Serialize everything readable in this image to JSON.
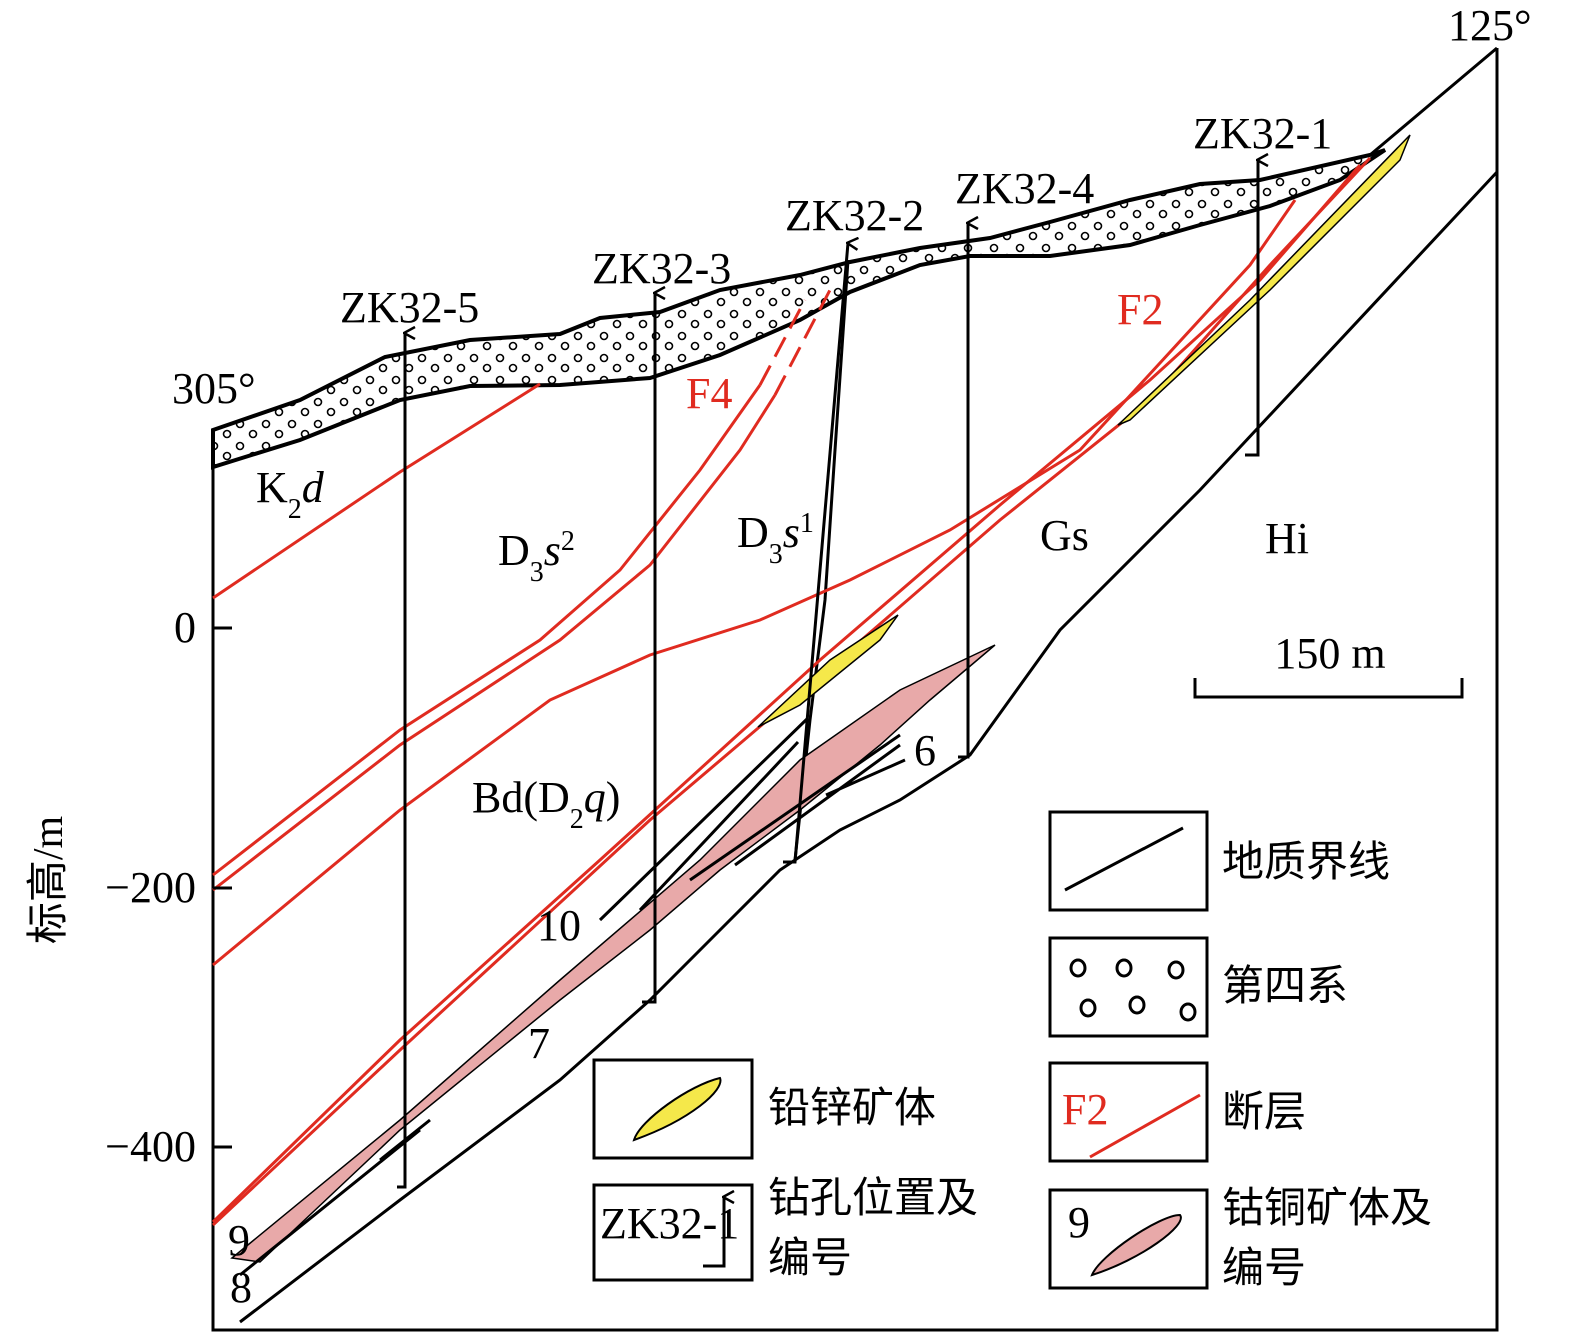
{
  "orientation": {
    "left": "305°",
    "right": "125°"
  },
  "axis": {
    "label": "标高/m",
    "ticks": [
      "0",
      "−200",
      "−400"
    ]
  },
  "boreholes": [
    "ZK32-5",
    "ZK32-3",
    "ZK32-2",
    "ZK32-4",
    "ZK32-1"
  ],
  "faults": [
    "F4",
    "F2"
  ],
  "formations": {
    "k2d": [
      "K",
      "2",
      "d"
    ],
    "d3s2": [
      "D",
      "3",
      "s",
      "2"
    ],
    "d3s1": [
      "D",
      "3",
      "s",
      "1"
    ],
    "gs": "Gs",
    "hi": "Hi",
    "bd": [
      "Bd(D",
      "2",
      "q",
      ")"
    ]
  },
  "orebody_numbers": [
    "6",
    "7",
    "8",
    "9",
    "10"
  ],
  "scale_bar": "150 m",
  "legend": [
    {
      "lines": [
        "地质界线"
      ]
    },
    {
      "lines": [
        "第四系"
      ]
    },
    {
      "lines": [
        "断层"
      ],
      "sample": "F2"
    },
    {
      "lines": [
        "铅锌矿体"
      ]
    },
    {
      "lines": [
        "钻孔位置及",
        "编号"
      ],
      "sample": "ZK32-1"
    },
    {
      "lines": [
        "钴铜矿体及",
        "编号"
      ],
      "sample": "9"
    }
  ]
}
